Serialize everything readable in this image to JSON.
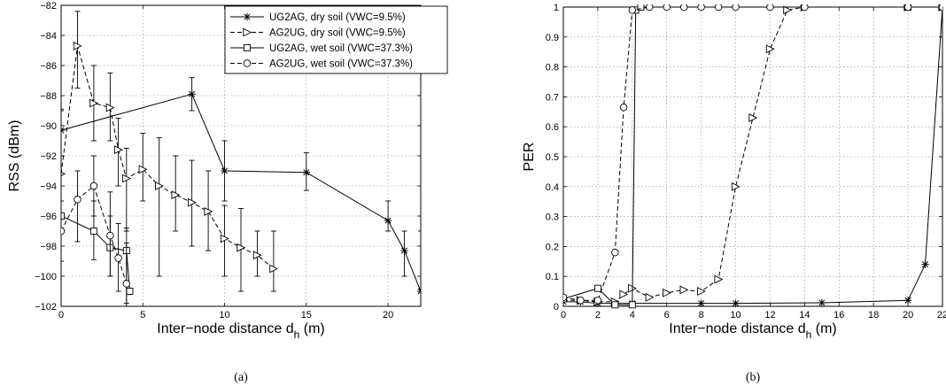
{
  "chart_data": [
    {
      "type": "line",
      "subcaption": "(a)",
      "xlabel_main": "Inter−node distance d",
      "xlabel_sub": "h",
      "xlabel_unit": " (m)",
      "ylabel": "RSS (dBm)",
      "xlim": [
        0,
        22
      ],
      "ylim": [
        -102,
        -82
      ],
      "xticks": [
        0,
        5,
        10,
        15,
        20
      ],
      "yticks": [
        -102,
        -100,
        -98,
        -96,
        -94,
        -92,
        -90,
        -88,
        -86,
        -84,
        -82
      ],
      "grid": true,
      "legend": "top-right",
      "series": [
        {
          "name": "UG2AG, dry soil (VWC=9.5%)",
          "marker": "star",
          "dash": "solid",
          "x": [
            0,
            8,
            10,
            15,
            20,
            21,
            22
          ],
          "y": [
            -90.3,
            -87.9,
            -93.0,
            -93.1,
            -96.3,
            -98.3,
            -101.0
          ],
          "err_low": [
            -92.0,
            -89.0,
            -95.0,
            -94.3,
            -97.0,
            -100.0,
            -102.0
          ],
          "err_high": [
            -88.9,
            -86.8,
            -91.0,
            -91.8,
            -95.0,
            -97.0,
            -97.0
          ]
        },
        {
          "name": "AG2UG, dry soil (VWC=9.5%)",
          "marker": "triangle-right",
          "dash": "dashed",
          "x": [
            0,
            1,
            2,
            3,
            3.5,
            4,
            5,
            6,
            7,
            8,
            9,
            10,
            11,
            12,
            13
          ],
          "y": [
            -93.2,
            -84.7,
            -88.5,
            -88.8,
            -91.6,
            -93.5,
            -92.9,
            -94.0,
            -94.6,
            -95.1,
            -95.7,
            -97.5,
            -98.1,
            -98.6,
            -99.5
          ],
          "err_low": [
            -97.0,
            -87.5,
            -91.0,
            -91.0,
            -94.0,
            -97.0,
            -95.0,
            -100.0,
            -97.0,
            -98.0,
            -98.3,
            -100.0,
            -101.0,
            -100.0,
            -101.0
          ],
          "err_high": [
            -89.0,
            -82.4,
            -86.0,
            -86.5,
            -89.5,
            -91.5,
            -90.5,
            -90.8,
            -92.0,
            -92.3,
            -93.0,
            -95.3,
            -95.5,
            -97.0,
            -97.0
          ]
        },
        {
          "name": "UG2AG, wet soil (VWC=37.3%)",
          "marker": "square",
          "dash": "solid",
          "x": [
            0,
            2,
            3,
            4,
            4.2
          ],
          "y": [
            -96.0,
            -97.0,
            -98.1,
            -98.3,
            -101.0
          ],
          "err_low": [
            -102.0,
            -98.9,
            -100.0,
            -101.8,
            -101.2
          ],
          "err_high": [
            -90.0,
            -95.0,
            -96.0,
            -96.8,
            -100.8
          ]
        },
        {
          "name": "AG2UG, wet soil (VWC=37.3%)",
          "marker": "circle",
          "dash": "dashed",
          "x": [
            0,
            1,
            2,
            3,
            3.5,
            4
          ],
          "y": [
            -97.0,
            -94.9,
            -94.0,
            -97.3,
            -98.8,
            -100.5
          ],
          "err_low": [
            -99.0,
            -97.7,
            -96.0,
            -100.0,
            -101.0,
            -102.0
          ],
          "err_high": [
            -95.0,
            -93.0,
            -92.0,
            -94.4,
            -96.5,
            -97.8
          ]
        }
      ]
    },
    {
      "type": "line",
      "subcaption": "(b)",
      "xlabel_main": "Inter−node distance d",
      "xlabel_sub": "h",
      "xlabel_unit": " (m)",
      "ylabel": "PER",
      "xlim": [
        0,
        22
      ],
      "ylim": [
        0,
        1
      ],
      "xticks": [
        0,
        2,
        4,
        6,
        8,
        10,
        12,
        14,
        16,
        18,
        20,
        22
      ],
      "yticks": [
        0,
        0.1,
        0.2,
        0.3,
        0.4,
        0.5,
        0.6,
        0.7,
        0.8,
        0.9,
        1
      ],
      "grid": true,
      "series": [
        {
          "name": "UG2AG, dry soil (VWC=9.5%)",
          "marker": "star",
          "dash": "solid",
          "x": [
            0,
            1,
            2,
            3,
            4,
            8,
            10,
            15,
            20,
            21,
            22
          ],
          "y": [
            0.015,
            0.015,
            0.01,
            0.01,
            0.01,
            0.01,
            0.01,
            0.012,
            0.02,
            0.14,
            1.0
          ]
        },
        {
          "name": "AG2UG, dry soil (VWC=9.5%)",
          "marker": "triangle-right",
          "dash": "dashed",
          "x": [
            0,
            1,
            2,
            3,
            3.5,
            4,
            5,
            6,
            7,
            8,
            9,
            10,
            11,
            12,
            13,
            14,
            20,
            22
          ],
          "y": [
            0.02,
            0.02,
            0.015,
            0.015,
            0.04,
            0.06,
            0.03,
            0.045,
            0.055,
            0.05,
            0.09,
            0.4,
            0.63,
            0.86,
            0.99,
            1.0,
            1.0,
            1.0
          ]
        },
        {
          "name": "UG2AG, wet soil (VWC=37.3%)",
          "marker": "square",
          "dash": "solid",
          "x": [
            0,
            2,
            3,
            4,
            4.2,
            4.5,
            20,
            22
          ],
          "y": [
            0.025,
            0.06,
            0.005,
            0.005,
            0.99,
            1.0,
            1.0,
            1.0
          ]
        },
        {
          "name": "AG2UG, wet soil (VWC=37.3%)",
          "marker": "circle",
          "dash": "dashed",
          "x": [
            0,
            1,
            2,
            3,
            3.5,
            4,
            5,
            6,
            7,
            8,
            9,
            10,
            12,
            14,
            20,
            22
          ],
          "y": [
            0.03,
            0.02,
            0.02,
            0.18,
            0.665,
            0.99,
            1.0,
            1.0,
            1.0,
            1.0,
            1.0,
            1.0,
            1.0,
            1.0,
            1.0,
            1.0
          ]
        }
      ]
    }
  ]
}
